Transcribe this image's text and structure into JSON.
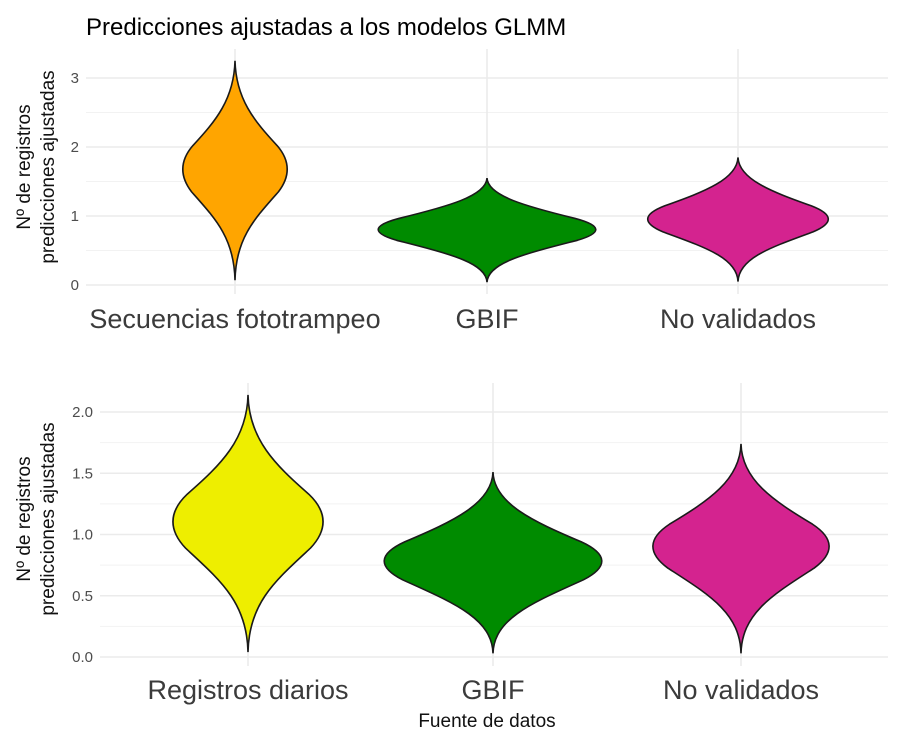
{
  "title": "Predicciones ajustadas a los modelos GLMM",
  "chart_data": [
    {
      "type": "violin",
      "title": "Predicciones ajustadas a los modelos GLMM",
      "xlabel": "",
      "ylabel": [
        "Nº de registros",
        "predicciones ajustadas"
      ],
      "ylim": [
        0,
        3.3
      ],
      "yticks": [
        "0",
        "1",
        "2",
        "3"
      ],
      "ytick_values": [
        0,
        1,
        2,
        3
      ],
      "grid": true,
      "categories": [
        "Secuencias fototrampeo",
        "GBIF",
        "No validados"
      ],
      "series": [
        {
          "name": "Secuencias fototrampeo",
          "color": "#FFA500",
          "min": 0.07,
          "max": 3.25,
          "mode": 1.67,
          "rel_width": 0.48
        },
        {
          "name": "GBIF",
          "color": "#008B00",
          "min": 0.04,
          "max": 1.55,
          "mode": 0.8,
          "rel_width": 1.0
        },
        {
          "name": "No validados",
          "color": "#D4238F",
          "min": 0.05,
          "max": 1.85,
          "mode": 0.95,
          "rel_width": 0.83
        }
      ]
    },
    {
      "type": "violin",
      "xlabel": "Fuente de datos",
      "ylabel": [
        "Nº de registros",
        "predicciones ajustadas"
      ],
      "ylim": [
        0,
        2.2
      ],
      "yticks": [
        "0.0",
        "0.5",
        "1.0",
        "1.5",
        "2.0"
      ],
      "ytick_values": [
        0,
        0.5,
        1.0,
        1.5,
        2.0
      ],
      "grid": true,
      "categories": [
        "Registros diarios",
        "GBIF",
        "No validados"
      ],
      "series": [
        {
          "name": "Registros diarios",
          "color": "#EEEE00",
          "min": 0.04,
          "max": 2.14,
          "mode": 1.1,
          "rel_width": 0.69
        },
        {
          "name": "GBIF",
          "color": "#008B00",
          "min": 0.03,
          "max": 1.51,
          "mode": 0.78,
          "rel_width": 1.0
        },
        {
          "name": "No validados",
          "color": "#D4238F",
          "min": 0.03,
          "max": 1.74,
          "mode": 0.9,
          "rel_width": 0.81
        }
      ]
    }
  ]
}
